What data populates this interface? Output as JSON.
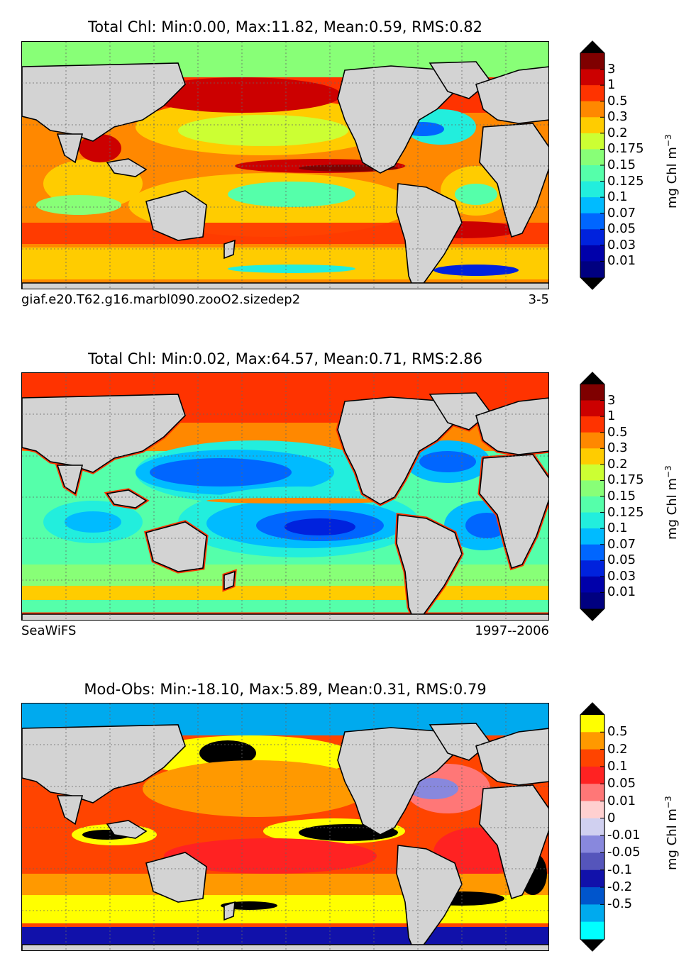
{
  "panels": [
    {
      "title": "Total Chl: Min:0.00, Max:11.82, Mean:0.59, RMS:0.82",
      "footer_left": "giaf.e20.T62.g16.marbl090.zooO2.sizedep2",
      "footer_right": "3-5",
      "colorbar_labels": [
        "3",
        "1",
        "0.5",
        "0.3",
        "0.2",
        "0.175",
        "0.15",
        "0.125",
        "0.1",
        "0.07",
        "0.05",
        "0.03",
        "0.01"
      ],
      "colorbar_colors": [
        "#7f0000",
        "#cc0000",
        "#ff3300",
        "#ff8800",
        "#ffcc00",
        "#ccff33",
        "#88ff77",
        "#55ffaa",
        "#22eedd",
        "#00bbff",
        "#0066ff",
        "#0022dd",
        "#0000aa",
        "#000080"
      ],
      "unit": "mg Chl m",
      "unit_exp": "−3"
    },
    {
      "title": "Total Chl: Min:0.02, Max:64.57, Mean:0.71, RMS:2.86",
      "footer_left": "SeaWiFS",
      "footer_right": "1997--2006",
      "colorbar_labels": [
        "3",
        "1",
        "0.5",
        "0.3",
        "0.2",
        "0.175",
        "0.15",
        "0.125",
        "0.1",
        "0.07",
        "0.05",
        "0.03",
        "0.01"
      ],
      "colorbar_colors": [
        "#7f0000",
        "#cc0000",
        "#ff3300",
        "#ff8800",
        "#ffcc00",
        "#ccff33",
        "#88ff77",
        "#55ffaa",
        "#22eedd",
        "#00bbff",
        "#0066ff",
        "#0022dd",
        "#0000aa",
        "#000080"
      ],
      "unit": "mg Chl m",
      "unit_exp": "−3"
    },
    {
      "title": "Mod-Obs: Min:-18.10, Max:5.89, Mean:0.31, RMS:0.79",
      "footer_left": "",
      "footer_right": "",
      "colorbar_labels": [
        "0.5",
        "0.2",
        "0.1",
        "0.05",
        "0.01",
        "0",
        "-0.01",
        "-0.05",
        "-0.1",
        "-0.2",
        "-0.5"
      ],
      "colorbar_colors": [
        "#ffff00",
        "#ff9900",
        "#ff4400",
        "#ff2222",
        "#ff7777",
        "#ffd0d0",
        "#d0d0f0",
        "#8888dd",
        "#5555bb",
        "#1111aa",
        "#0055cc",
        "#00aaee",
        "#00ffff"
      ],
      "unit": "mg Chl m",
      "unit_exp": "−3"
    }
  ],
  "colors": {
    "land": "#d3d3d3",
    "coast": "#000000",
    "grid": "#666666"
  }
}
